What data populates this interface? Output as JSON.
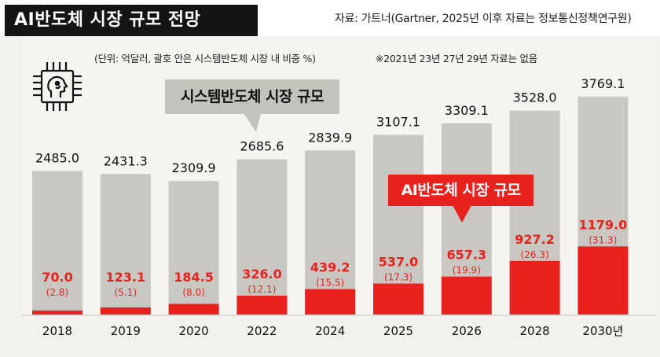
{
  "header": {
    "title": "AI반도체 시장 규모 전망",
    "source": "자료: 가트너(Gartner, 2025년 이후 자료는 정보통신정책연구원)"
  },
  "notes": {
    "unit": "(단위: 억달러, 괄호 안은 시스템반도체 시장 내 비중 %)",
    "missing": "※2021년 23년 27년 29년 자료는 없음"
  },
  "icon": {
    "name": "ai-chip-icon"
  },
  "chart_data": {
    "type": "bar",
    "title": "AI반도체 시장 규모 전망",
    "categories": [
      "2018",
      "2019",
      "2020",
      "2022",
      "2024",
      "2025",
      "2026",
      "2028",
      "2030년"
    ],
    "series": [
      {
        "name": "시스템반도체 시장 규모",
        "values": [
          2485.0,
          2431.3,
          2309.9,
          2685.6,
          2839.9,
          3107.1,
          3309.1,
          3528.0,
          3769.1
        ],
        "labels": [
          "2485.0",
          "2431.3",
          "2309.9",
          "2685.6",
          "2839.9",
          "3107.1",
          "3309.1",
          "3528.0",
          "3769.1"
        ],
        "color": "#c8c7c2"
      },
      {
        "name": "AI반도체 시장 규모",
        "values": [
          70.0,
          123.1,
          184.5,
          326.0,
          439.2,
          537.0,
          657.3,
          927.2,
          1179.0
        ],
        "labels": [
          "70.0",
          "123.1",
          "184.5",
          "326.0",
          "439.2",
          "537.0",
          "657.3",
          "927.2",
          "1179.0"
        ],
        "share_labels": [
          "(2.8)",
          "(5.1)",
          "(8.0)",
          "(12.1)",
          "(15.5)",
          "(17.3)",
          "(19.9)",
          "(26.3)",
          "(31.3)"
        ],
        "color": "#e8211d"
      }
    ],
    "ylim": [
      0,
      4500
    ],
    "xlabel": "",
    "ylabel": "억달러",
    "legend": [
      "시스템반도체 시장 규모",
      "AI반도체 시장 규모"
    ]
  }
}
